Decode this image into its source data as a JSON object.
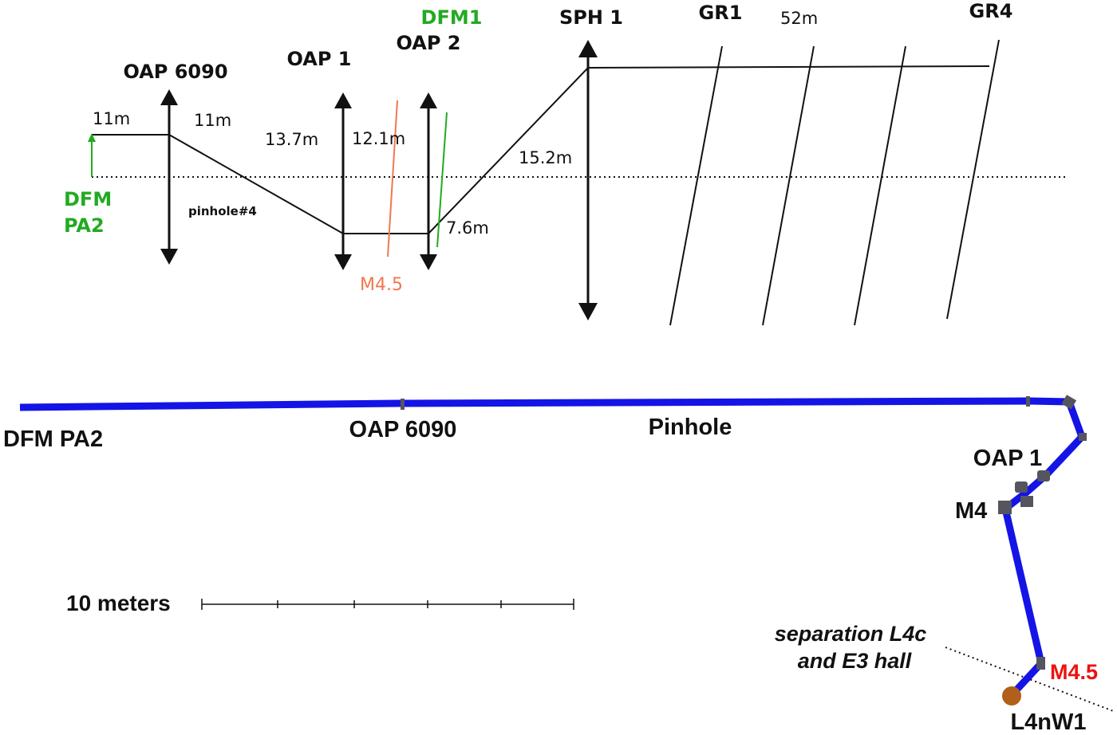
{
  "schematic": {
    "elements": {
      "oap6090": "OAP 6090",
      "oap1": "OAP 1",
      "oap2": "OAP 2",
      "dfm1": "DFM1",
      "sph1": "SPH 1",
      "gr1": "GR1",
      "gr4": "GR4",
      "dfm_pa2_line1": "DFM",
      "dfm_pa2_line2": "PA2",
      "pinhole4": "pinhole#4",
      "m45": "M4.5"
    },
    "distances": {
      "d1": "11m",
      "d2": "11m",
      "d3": "13.7m",
      "d4": "12.1m",
      "d5": "15.2m",
      "d6": "7.6m",
      "d7": "52m"
    }
  },
  "layout_map": {
    "labels": {
      "dfm_pa2": "DFM PA2",
      "oap6090": "OAP 6090",
      "pinhole": "Pinhole",
      "oap1": "OAP 1",
      "m4": "M4",
      "m45": "M4.5",
      "l4nw1": "L4nW1",
      "separation_line1": "separation L4c",
      "separation_line2": "and E3 hall"
    },
    "scale_bar": {
      "label": "10 meters"
    }
  },
  "colors": {
    "ink": "#111111",
    "green": "#22aa22",
    "orange": "#f07850",
    "beam_blue": "#1414e6",
    "red": "#ee1111",
    "mount_gray": "#555560",
    "source_brown": "#b0601a"
  }
}
